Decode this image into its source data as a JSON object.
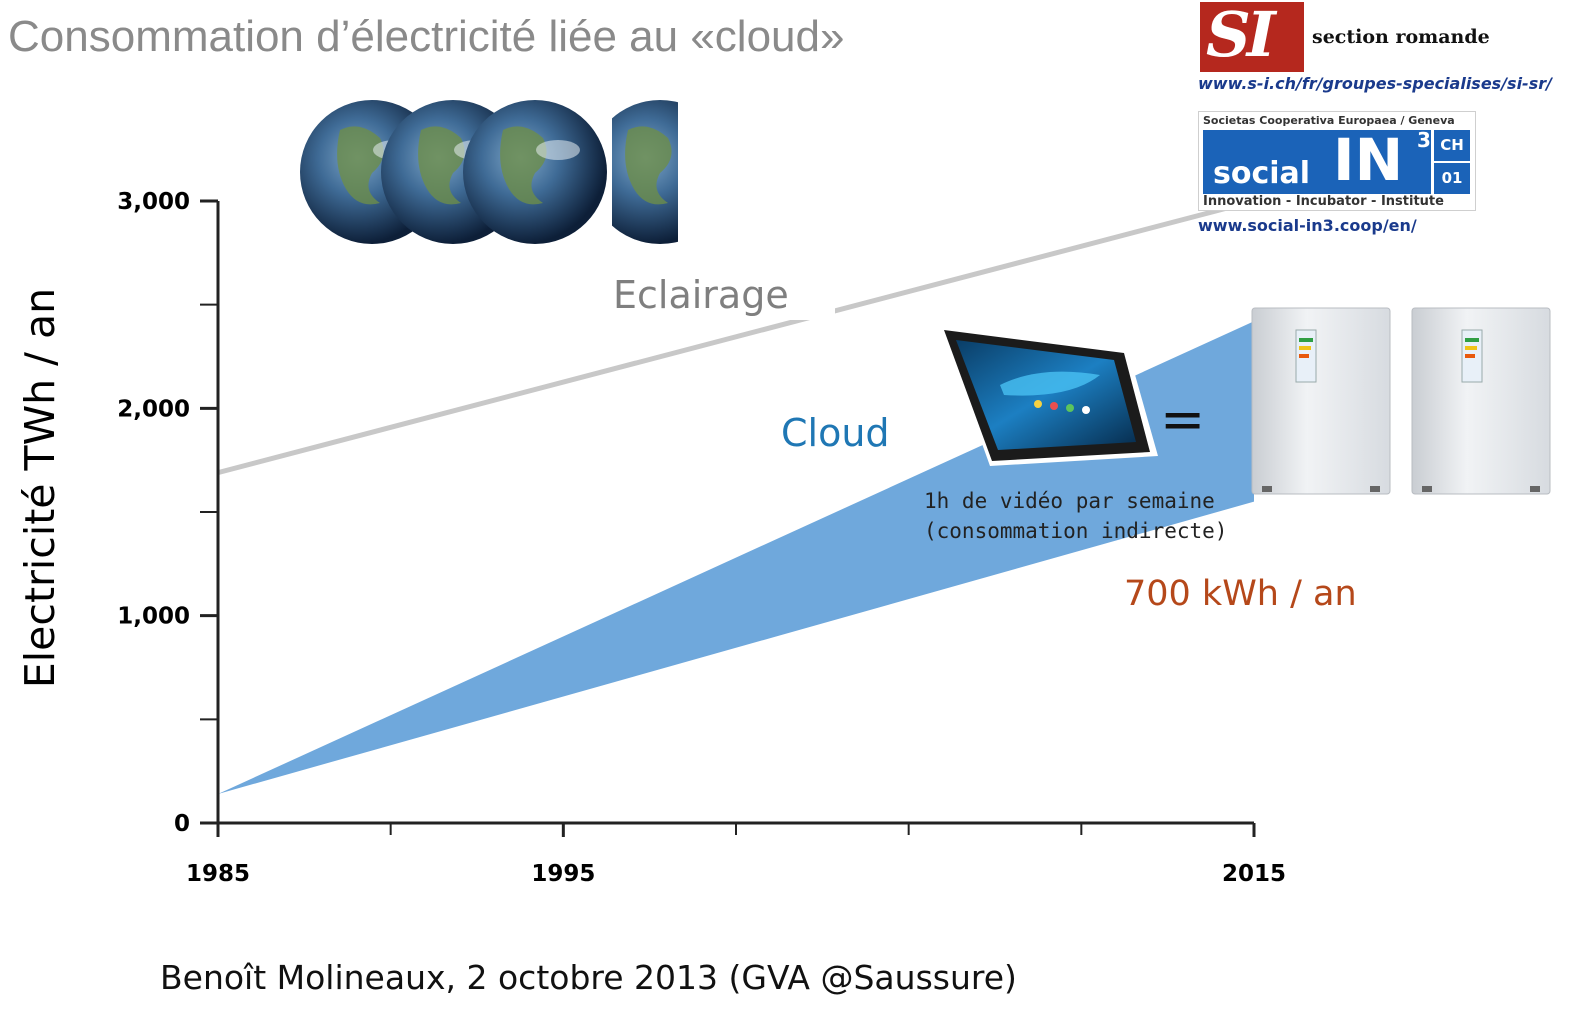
{
  "title": "Consommation d’électricité liée au «cloud»",
  "footer": "Benoît Molineaux, 2 octobre 2013 (GVA @Saussure)",
  "logos": {
    "si_mark": "SI",
    "si_section": "section romande",
    "si_url": "www.s-i.ch/fr/groupes-specialises/si-sr/",
    "in3_top": "Societas Cooperativa Europaea / Geneva",
    "in3_word": "social",
    "in3_big": "IN",
    "in3_sup": "3",
    "in3_ch": "CH",
    "in3_01": "01",
    "in3_bottom": "Innovation - Incubator - Institute",
    "in3_url": "www.social-in3.coop/en/"
  },
  "annotations": {
    "note_line1": "1h de vidéo par semaine",
    "note_line2": "(consommation indirecte)",
    "equals": "=",
    "kwh": "700 kWh / an"
  },
  "icons": {
    "earth": "earth-globe-icon",
    "tablet": "tablet-icon",
    "fridge": "fridge-icon"
  },
  "colors": {
    "eclairage": "#c8c8c8",
    "eclairage_text": "#7f7f7f",
    "cloud": "#6fa8dc",
    "cloud_text": "#1f77b4",
    "kwh": "#b5481a"
  },
  "chart_data": {
    "type": "line",
    "title": "",
    "xlabel": "",
    "ylabel": "Electricité TWh / an",
    "x_ticks": [
      1985,
      1995,
      2015
    ],
    "x_minor_ticks": [
      1990,
      2000,
      2005,
      2010
    ],
    "y_ticks": [
      "0",
      "1,000",
      "2,000",
      "3,000"
    ],
    "y_tick_values": [
      0,
      1000,
      2000,
      3000
    ],
    "y_minor_ticks": [
      500,
      1500,
      2500
    ],
    "xlim": [
      1985,
      2015
    ],
    "ylim": [
      0,
      3000
    ],
    "grid": false,
    "series": [
      {
        "name": "Eclairage",
        "type": "line",
        "x": [
          1985,
          2015
        ],
        "values": [
          1690,
          3000
        ]
      },
      {
        "name": "Cloud",
        "type": "area-band",
        "x": [
          1985,
          2015
        ],
        "lower": [
          140,
          1550
        ],
        "upper": [
          140,
          2420
        ]
      }
    ]
  }
}
